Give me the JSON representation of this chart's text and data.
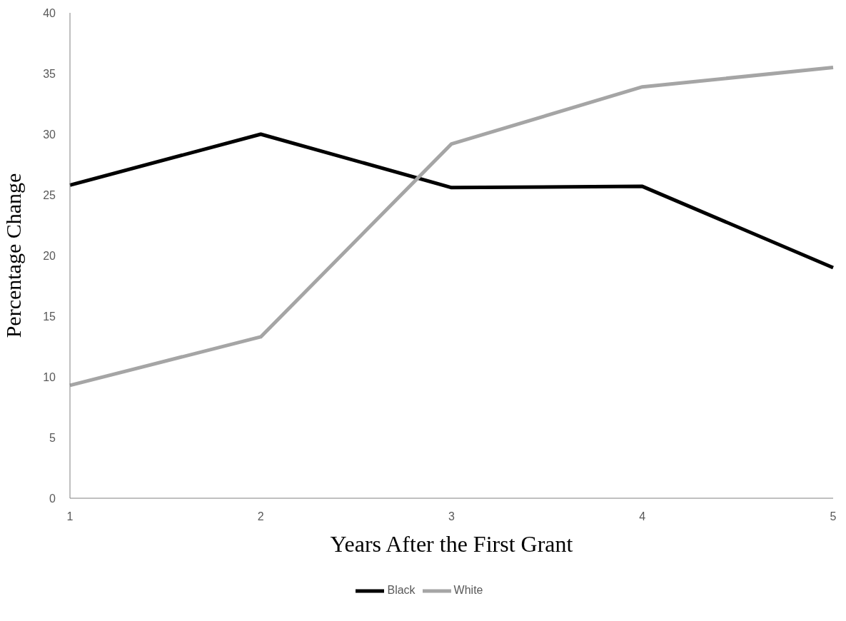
{
  "chart_data": {
    "type": "line",
    "xlabel": "Years After the First Grant",
    "ylabel": "Percentage Change",
    "categories": [
      "1",
      "2",
      "3",
      "4",
      "5"
    ],
    "series": [
      {
        "name": "Black",
        "color": "#000000",
        "values": [
          25.8,
          30.0,
          25.6,
          25.7,
          19.0
        ]
      },
      {
        "name": "White",
        "color": "#a5a5a5",
        "values": [
          9.3,
          13.3,
          29.2,
          33.9,
          35.5
        ]
      }
    ],
    "ylim": [
      0,
      40
    ],
    "yticks": [
      0,
      5,
      10,
      15,
      20,
      25,
      30,
      35,
      40
    ],
    "grid": false,
    "legend": "bottom"
  }
}
